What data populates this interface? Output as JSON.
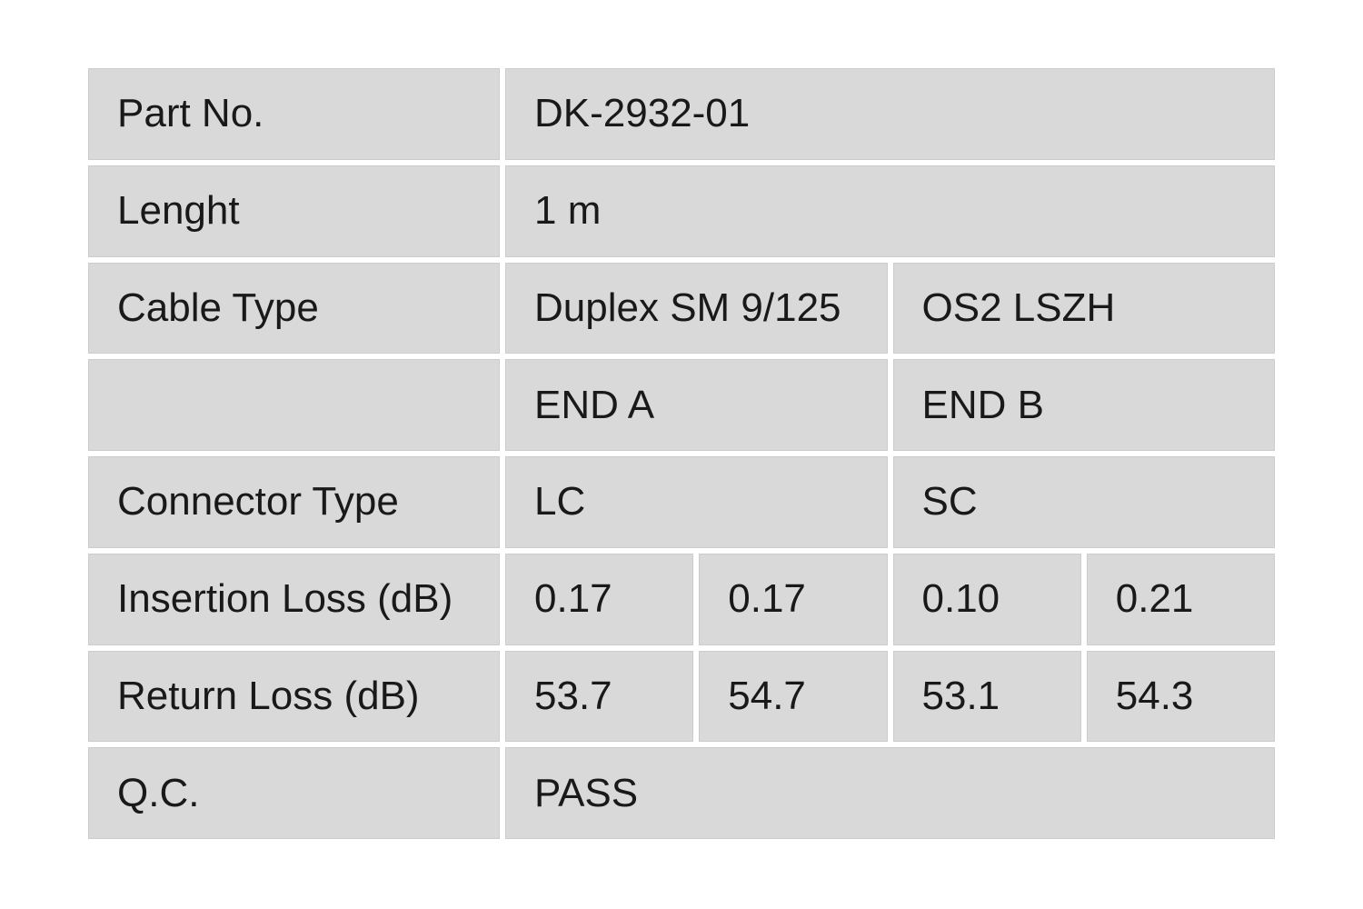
{
  "table": {
    "colors": {
      "cell_background": "#d9d9d9",
      "page_background": "#ffffff",
      "text": "#191919"
    },
    "rows": {
      "part_no": {
        "label": "Part No.",
        "value": "DK-2932-01"
      },
      "length": {
        "label": "Lenght",
        "value": "1 m"
      },
      "cable_type": {
        "label": "Cable Type",
        "value_a": "Duplex SM 9/125",
        "value_b": "OS2 LSZH"
      },
      "ends": {
        "label": "",
        "end_a": "END A",
        "end_b": "END B"
      },
      "connector_type": {
        "label": "Connector Type",
        "end_a": "LC",
        "end_b": "SC"
      },
      "insertion_loss": {
        "label": "Insertion Loss (dB)",
        "values": [
          "0.17",
          "0.17",
          "0.10",
          "0.21"
        ]
      },
      "return_loss": {
        "label": "Return Loss (dB)",
        "values": [
          "53.7",
          "54.7",
          "53.1",
          "54.3"
        ]
      },
      "qc": {
        "label": "Q.C.",
        "value": "PASS"
      }
    }
  }
}
